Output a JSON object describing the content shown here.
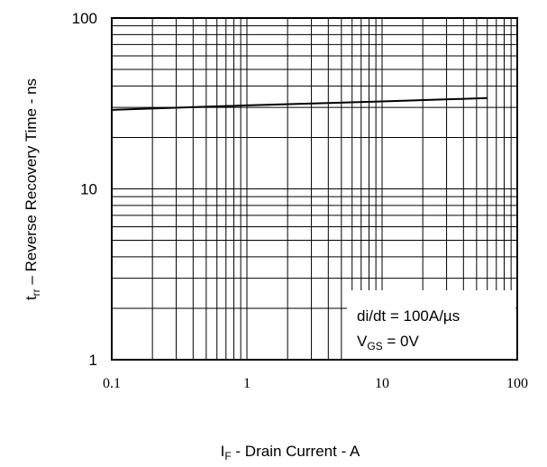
{
  "chart_data": {
    "type": "line",
    "title": "",
    "x_scale": "log",
    "y_scale": "log",
    "xlim": [
      0.1,
      100
    ],
    "ylim": [
      1,
      100
    ],
    "grid": true,
    "x_ticks": [
      "0.1",
      "1",
      "10",
      "100"
    ],
    "y_ticks": [
      "1",
      "10",
      "100"
    ],
    "xlabel": {
      "prefix": "I",
      "subscript": "F",
      "suffix": " - Drain Current  - A"
    },
    "ylabel": {
      "prefix": "t",
      "subscript": "rr",
      "suffix": " – Reverse Recovery Time - ns"
    },
    "series": [
      {
        "color": "#000000",
        "x": [
          0.1,
          1,
          10,
          60
        ],
        "y": [
          29,
          30.8,
          32.5,
          34
        ]
      }
    ],
    "annotations": {
      "line1": "di/dt = 100A/µs",
      "line2_prefix": "V",
      "line2_subscript": "GS",
      "line2_suffix": " = 0V"
    }
  }
}
